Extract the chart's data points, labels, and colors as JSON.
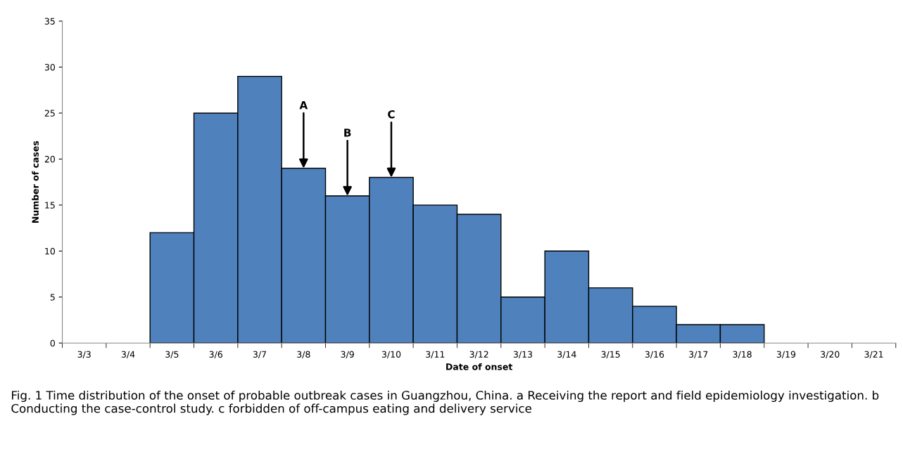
{
  "chart_data": {
    "type": "bar",
    "xlabel": "Date of onset",
    "ylabel": "Number of cases",
    "categories": [
      "3/3",
      "3/4",
      "3/5",
      "3/6",
      "3/7",
      "3/8",
      "3/9",
      "3/10",
      "3/11",
      "3/12",
      "3/13",
      "3/14",
      "3/15",
      "3/16",
      "3/17",
      "3/18",
      "3/19",
      "3/20",
      "3/21"
    ],
    "values": [
      0,
      0,
      12,
      25,
      29,
      19,
      16,
      18,
      15,
      14,
      5,
      10,
      6,
      4,
      2,
      2,
      0,
      0,
      0
    ],
    "color": "#4f81bd",
    "ylim": [
      0,
      35
    ],
    "yticks": [
      0,
      5,
      10,
      15,
      20,
      25,
      30,
      35
    ],
    "grid": false,
    "legend": false,
    "annotations": [
      {
        "text": "A",
        "x": "3/8",
        "y": 19
      },
      {
        "text": "B",
        "x": "3/9",
        "y": 16
      },
      {
        "text": "C",
        "x": "3/10",
        "y": 18
      },
      "Fig. 1 Time distribution of the onset of probable outbreak cases in Guangzhou, China. a Receiving the report and field epidemiology investigation. b Conducting the case-control study. c forbidden of off-campus eating and delivery service"
    ]
  }
}
